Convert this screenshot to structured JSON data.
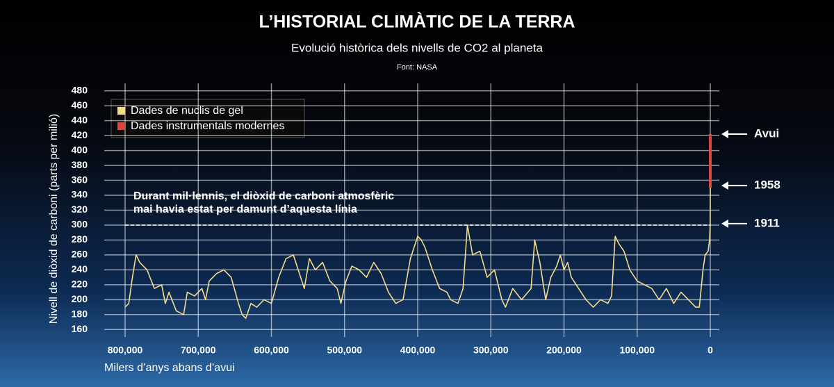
{
  "chart_data": {
    "type": "line",
    "title": "L’HISTORIAL CLIMÀTIC DE LA TERRA",
    "subtitle": "Evolució històrica dels nivells de CO2 al planeta",
    "source": "Font: NASA",
    "x_label": "Milers d’anys abans d’avui",
    "y_label": "Nivell de diòxid de carboni (parts per milió)",
    "xlim": [
      828500,
      -12350
    ],
    "ylim": [
      150,
      490
    ],
    "xticks": [
      {
        "value": 800000,
        "label": "800,000"
      },
      {
        "value": 700000,
        "label": "700,000"
      },
      {
        "value": 600000,
        "label": "600,000"
      },
      {
        "value": 500000,
        "label": "500,000"
      },
      {
        "value": 400000,
        "label": "400,000"
      },
      {
        "value": 300000,
        "label": "300,000"
      },
      {
        "value": 200000,
        "label": "200,000"
      },
      {
        "value": 100000,
        "label": "100,000"
      },
      0
    ],
    "yticks": [
      160,
      180,
      200,
      220,
      240,
      260,
      280,
      300,
      320,
      340,
      360,
      380,
      400,
      420,
      440,
      460,
      480
    ],
    "grid": true,
    "series": [
      {
        "name": "Dades de nuclis de gel",
        "color": "#f3dc8c",
        "x": [
          800000,
          795000,
          790000,
          785000,
          780000,
          770000,
          760000,
          750000,
          745000,
          740000,
          730000,
          720000,
          715000,
          705000,
          695000,
          690000,
          685000,
          675000,
          665000,
          655000,
          645000,
          640000,
          635000,
          628000,
          620000,
          610000,
          600000,
          590000,
          580000,
          570000,
          560000,
          555000,
          548000,
          540000,
          530000,
          520000,
          510000,
          505000,
          498000,
          490000,
          480000,
          470000,
          460000,
          450000,
          440000,
          430000,
          420000,
          410000,
          400000,
          395000,
          390000,
          380000,
          370000,
          360000,
          355000,
          345000,
          338000,
          332000,
          325000,
          315000,
          305000,
          295000,
          285000,
          280000,
          270000,
          258000,
          245000,
          240000,
          233000,
          225000,
          218000,
          210000,
          205000,
          200000,
          195000,
          190000,
          180000,
          170000,
          160000,
          150000,
          140000,
          135000,
          130000,
          125000,
          118000,
          110000,
          100000,
          90000,
          80000,
          70000,
          60000,
          50000,
          40000,
          30000,
          20000,
          15000,
          10000,
          7000,
          3000,
          1000,
          200,
          0
        ],
        "values": [
          190,
          195,
          230,
          260,
          250,
          240,
          215,
          220,
          195,
          210,
          185,
          180,
          210,
          205,
          215,
          200,
          225,
          235,
          240,
          230,
          195,
          180,
          175,
          195,
          190,
          200,
          195,
          230,
          255,
          260,
          230,
          215,
          255,
          240,
          250,
          225,
          215,
          195,
          225,
          245,
          240,
          230,
          250,
          235,
          210,
          195,
          200,
          255,
          285,
          280,
          270,
          240,
          215,
          210,
          200,
          195,
          215,
          300,
          260,
          265,
          230,
          240,
          200,
          190,
          215,
          200,
          215,
          280,
          250,
          200,
          230,
          245,
          260,
          240,
          250,
          230,
          215,
          200,
          190,
          200,
          195,
          205,
          285,
          275,
          265,
          240,
          225,
          220,
          215,
          200,
          215,
          195,
          210,
          200,
          190,
          190,
          240,
          260,
          265,
          280,
          300,
          350
        ]
      },
      {
        "name": "Dades instrumentals modernes",
        "color": "#d9473f",
        "x": [
          0,
          0
        ],
        "values": [
          350,
          422
        ]
      }
    ],
    "threshold": {
      "value": 300,
      "text": [
        "Durant mil·lennis, el diòxid de carboni atmosfèric",
        "mai havia estat per damunt d’aquesta línia"
      ]
    },
    "markers": [
      {
        "label": "Avui",
        "value": 422
      },
      {
        "label": "1958",
        "value": 353
      },
      {
        "label": "1911",
        "value": 302
      }
    ]
  }
}
